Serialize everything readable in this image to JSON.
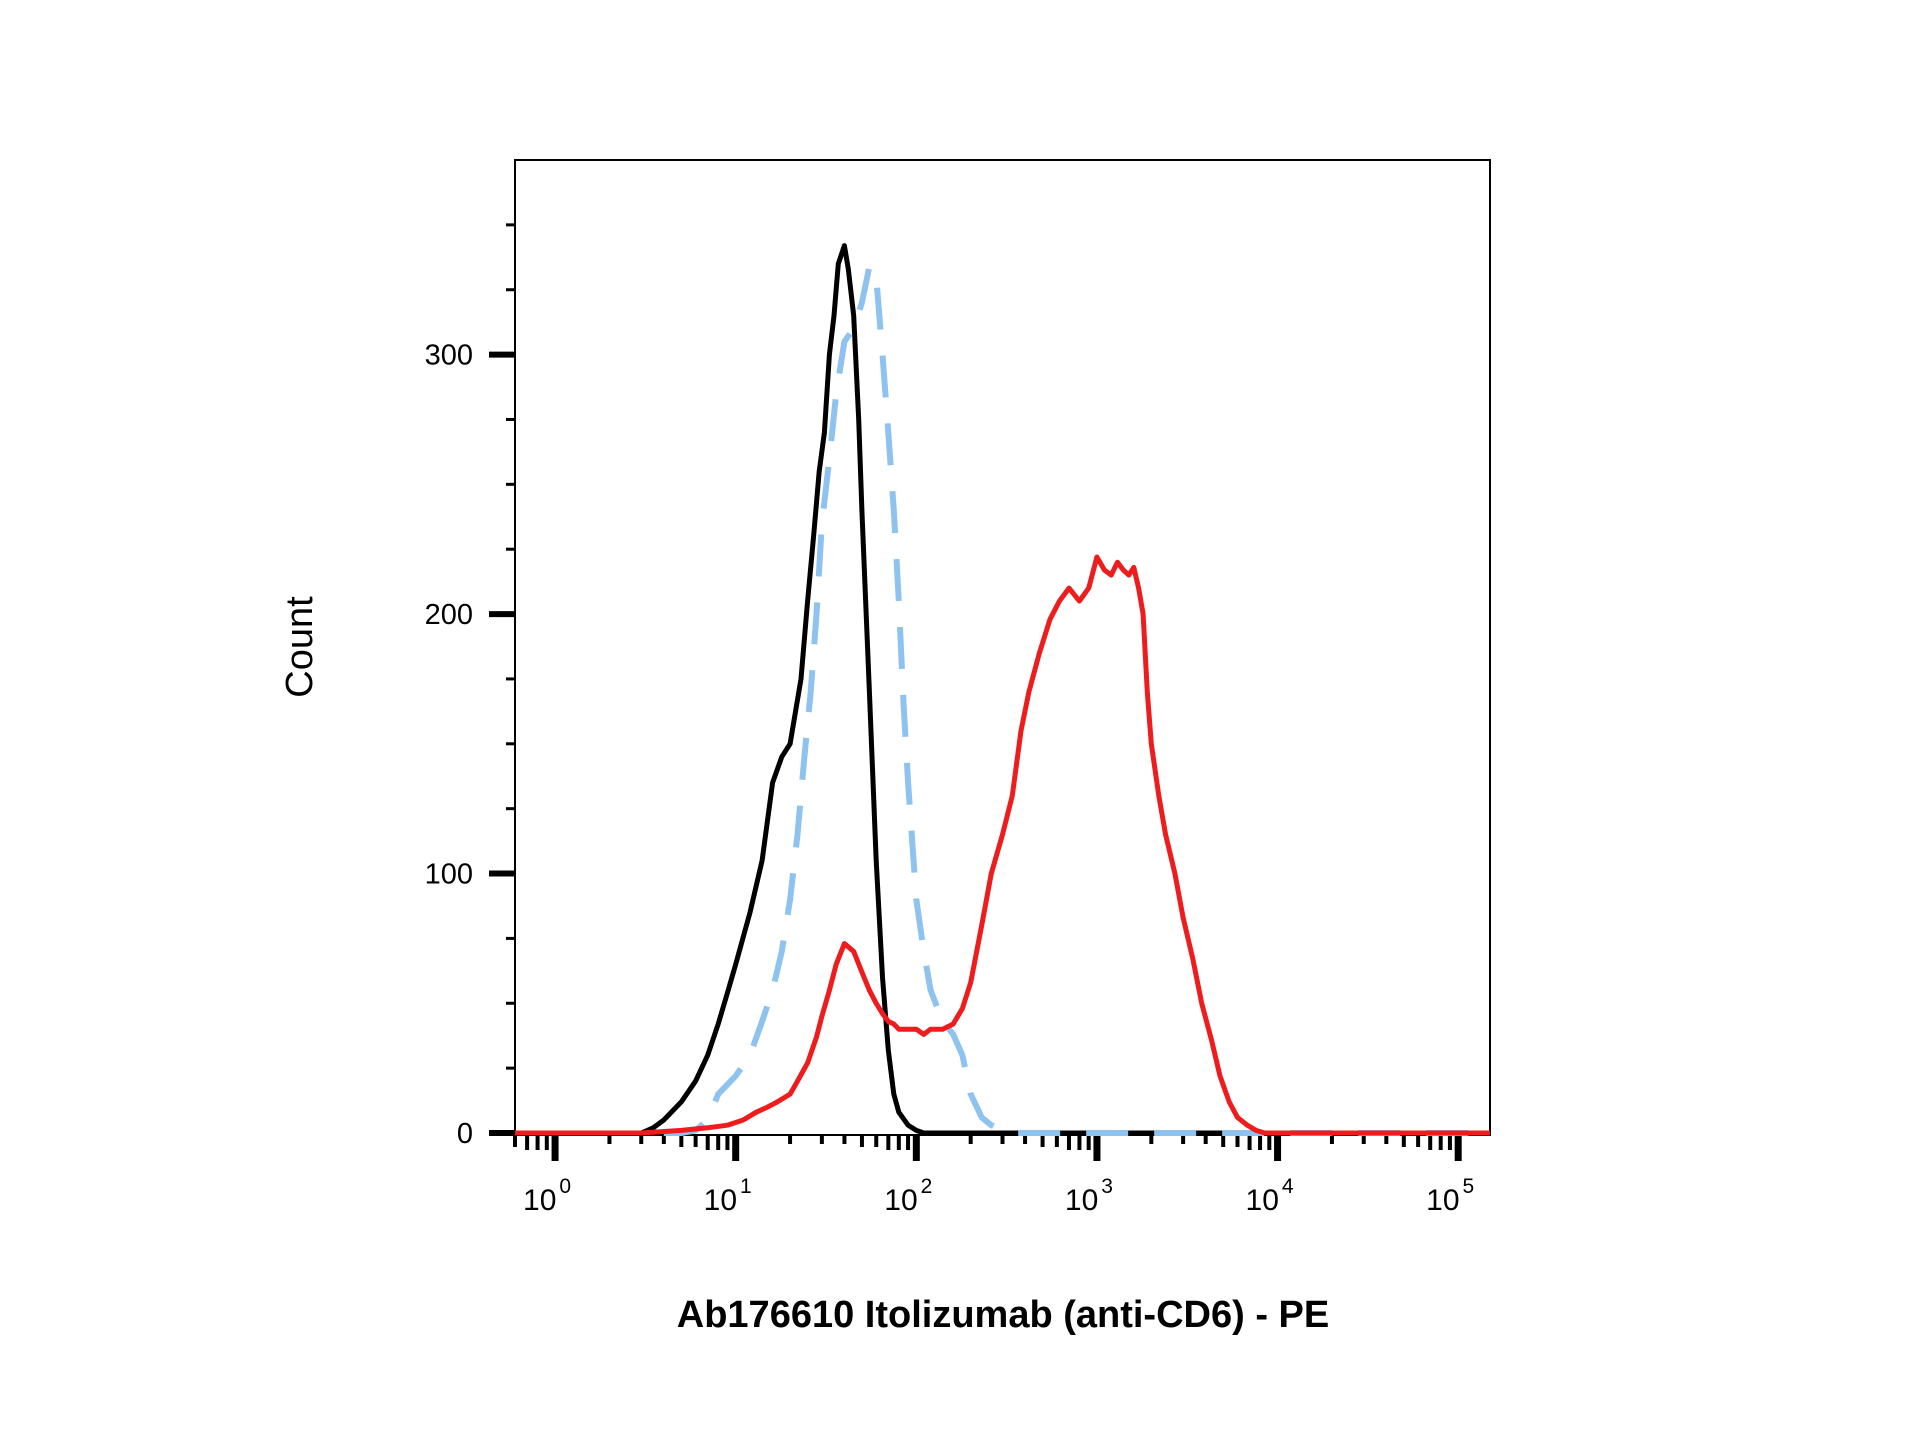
{
  "chart_data": {
    "type": "line",
    "title": "",
    "xlabel": "Ab176610 Itolizumab (anti-CD6) - PE",
    "ylabel": "Count",
    "x_scale": "log",
    "xlim": [
      0.6,
      150000
    ],
    "ylim": [
      0,
      375
    ],
    "grid": false,
    "legend": "none",
    "y_ticks": [
      {
        "value": 0,
        "label": "0"
      },
      {
        "value": 100,
        "label": "100"
      },
      {
        "value": 200,
        "label": "200"
      },
      {
        "value": 300,
        "label": "300"
      }
    ],
    "x_ticks": [
      {
        "value": 1,
        "base": "10",
        "exp": "0"
      },
      {
        "value": 10,
        "base": "10",
        "exp": "1"
      },
      {
        "value": 100,
        "base": "10",
        "exp": "2"
      },
      {
        "value": 1000,
        "base": "10",
        "exp": "3"
      },
      {
        "value": 10000,
        "base": "10",
        "exp": "4"
      },
      {
        "value": 100000,
        "base": "10",
        "exp": "5"
      }
    ],
    "series": [
      {
        "color": "#000000",
        "style": "solid",
        "x": [
          3,
          3.5,
          4,
          5,
          6,
          7,
          8,
          9,
          10,
          12,
          14,
          16,
          18,
          20,
          23,
          25,
          27,
          29,
          31,
          33,
          35,
          37,
          40,
          42,
          45,
          48,
          50,
          55,
          60,
          65,
          70,
          75,
          80,
          90,
          100,
          110,
          130,
          150,
          200,
          300,
          500,
          1000,
          150000
        ],
        "y": [
          0,
          2,
          5,
          12,
          20,
          30,
          42,
          54,
          65,
          85,
          105,
          135,
          145,
          150,
          175,
          205,
          230,
          255,
          270,
          300,
          315,
          335,
          342,
          333,
          315,
          275,
          240,
          170,
          105,
          60,
          32,
          15,
          8,
          3,
          1,
          0,
          0,
          0,
          0,
          0,
          0,
          0,
          0
        ]
      },
      {
        "color": "#8ec3f0",
        "style": "dashed",
        "x": [
          4,
          5,
          6,
          7,
          8,
          10,
          12,
          14,
          16,
          18,
          20,
          22,
          24,
          26,
          28,
          30,
          33,
          36,
          40,
          45,
          50,
          55,
          60,
          65,
          70,
          75,
          80,
          85,
          90,
          100,
          110,
          120,
          140,
          160,
          180,
          200,
          230,
          260,
          300,
          350,
          400,
          500,
          700,
          1000,
          3000,
          10000,
          150000
        ],
        "y": [
          0,
          0,
          1,
          5,
          15,
          22,
          30,
          43,
          55,
          70,
          90,
          115,
          145,
          170,
          200,
          235,
          260,
          285,
          305,
          310,
          320,
          334,
          330,
          300,
          270,
          240,
          205,
          165,
          135,
          90,
          70,
          55,
          43,
          38,
          30,
          15,
          6,
          3,
          1,
          0,
          0,
          0,
          0,
          0,
          0,
          0,
          0
        ]
      },
      {
        "color": "#ee1c1c",
        "style": "solid",
        "x": [
          0.6,
          1,
          2,
          3,
          5,
          7,
          9,
          11,
          13,
          15,
          17,
          20,
          22,
          25,
          28,
          30,
          33,
          36,
          40,
          45,
          50,
          55,
          60,
          65,
          70,
          75,
          80,
          90,
          100,
          110,
          120,
          140,
          160,
          180,
          200,
          230,
          260,
          300,
          340,
          380,
          420,
          480,
          550,
          620,
          700,
          800,
          900,
          1000,
          1100,
          1200,
          1300,
          1400,
          1500,
          1600,
          1700,
          1800,
          1900,
          2000,
          2200,
          2400,
          2700,
          3000,
          3400,
          3800,
          4300,
          4800,
          5400,
          6000,
          6800,
          7600,
          8500,
          10000,
          20000,
          50000,
          150000
        ],
        "y": [
          0,
          0,
          0,
          0,
          1,
          2,
          3,
          5,
          8,
          10,
          12,
          15,
          20,
          27,
          37,
          45,
          55,
          65,
          73,
          70,
          62,
          55,
          50,
          46,
          43,
          42,
          40,
          40,
          40,
          38,
          40,
          40,
          42,
          48,
          58,
          80,
          100,
          115,
          130,
          155,
          170,
          185,
          198,
          205,
          210,
          205,
          210,
          222,
          217,
          215,
          220,
          217,
          215,
          218,
          210,
          200,
          170,
          150,
          130,
          115,
          100,
          83,
          67,
          50,
          36,
          22,
          12,
          6,
          3,
          1,
          0,
          0,
          0,
          0,
          0
        ]
      }
    ]
  }
}
